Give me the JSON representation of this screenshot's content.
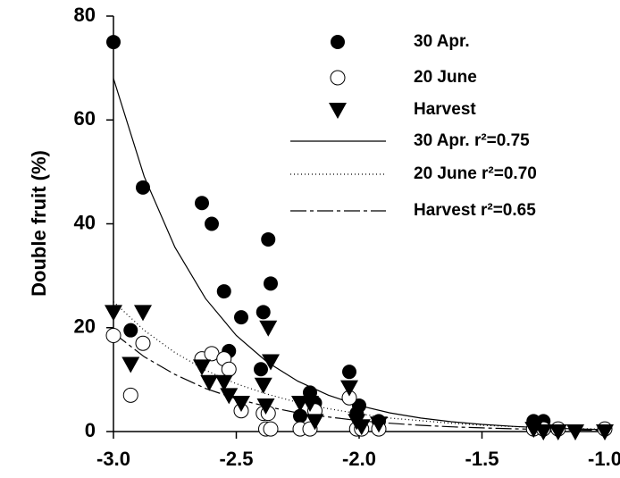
{
  "chart_data": {
    "type": "scatter",
    "ylabel": "Double fruit (%)",
    "xlim": [
      -3.0,
      -1.0
    ],
    "ylim": [
      0,
      80
    ],
    "xticks": [
      {
        "value": -3.0,
        "label": "-3.0"
      },
      {
        "value": -2.5,
        "label": "-2.5"
      },
      {
        "value": -2.0,
        "label": "-2.0"
      },
      {
        "value": -1.5,
        "label": "-1.5"
      },
      {
        "value": -1.0,
        "label": "-1.0"
      }
    ],
    "yticks": [
      0,
      20,
      40,
      60,
      80
    ],
    "series": [
      {
        "name": "30 Apr.",
        "style": "filled-circle",
        "color": "#000000",
        "x": [
          -3.0,
          -2.93,
          -2.88,
          -2.64,
          -2.6,
          -2.55,
          -2.53,
          -2.48,
          -2.39,
          -2.4,
          -2.37,
          -2.36,
          -2.24,
          -2.2,
          -2.18,
          -2.04,
          -2.01,
          -2.0,
          -1.92,
          -1.29,
          -1.25
        ],
        "values": [
          75,
          19.5,
          47,
          44,
          40,
          27,
          15.5,
          22,
          23,
          12,
          37,
          28.5,
          3,
          7.5,
          5.5,
          11.5,
          3.5,
          5,
          2,
          2,
          2
        ]
      },
      {
        "name": "20 June",
        "style": "open-circle",
        "color": "#000000",
        "x": [
          -3.0,
          -2.93,
          -2.88,
          -2.64,
          -2.6,
          -2.55,
          -2.53,
          -2.48,
          -2.39,
          -2.38,
          -2.37,
          -2.36,
          -2.24,
          -2.2,
          -2.18,
          -2.04,
          -2.01,
          -1.99,
          -1.92,
          -1.29,
          -1.25,
          -1.19,
          -1.0
        ],
        "values": [
          18.5,
          7,
          17,
          14,
          15,
          14,
          12,
          4,
          3.5,
          0.5,
          3.5,
          0.5,
          0.5,
          0.5,
          4,
          6.5,
          0.5,
          0.5,
          0.5,
          0.5,
          0.5,
          0.5,
          0.5
        ]
      },
      {
        "name": "Harvest",
        "style": "triangle-down",
        "color": "#000000",
        "x": [
          -3.0,
          -2.93,
          -2.88,
          -2.64,
          -2.61,
          -2.55,
          -2.53,
          -2.48,
          -2.39,
          -2.38,
          -2.37,
          -2.36,
          -2.24,
          -2.2,
          -2.18,
          -2.04,
          -2.01,
          -1.99,
          -1.92,
          -1.29,
          -1.25,
          -1.19,
          -1.12,
          -1.0
        ],
        "values": [
          23,
          13,
          23,
          12.5,
          9.5,
          9.5,
          7,
          5.5,
          9,
          5,
          20,
          13.5,
          5.5,
          5.5,
          2,
          8.5,
          2,
          1,
          1.5,
          0.5,
          0,
          0,
          0,
          0
        ]
      },
      {
        "name": "30 Apr. r²=0.75",
        "style": "solid",
        "color": "#000000",
        "x": [
          -3.0,
          -2.875,
          -2.75,
          -2.625,
          -2.5,
          -2.375,
          -2.25,
          -2.125,
          -2.0,
          -1.875,
          -1.75,
          -1.625,
          -1.5,
          -1.375,
          -1.25,
          -1.125,
          -1.0
        ],
        "values": [
          68,
          49.1,
          35.5,
          25.6,
          18.5,
          13.4,
          9.7,
          7.0,
          5.0,
          3.6,
          2.6,
          1.9,
          1.37,
          0.99,
          0.71,
          0.52,
          0.37
        ]
      },
      {
        "name": "20 June r²=0.70",
        "style": "dotted",
        "color": "#000000",
        "x": [
          -3.0,
          -2.875,
          -2.75,
          -2.625,
          -2.5,
          -2.375,
          -2.25,
          -2.125,
          -2.0,
          -1.875,
          -1.75,
          -1.625,
          -1.5,
          -1.375,
          -1.25,
          -1.125,
          -1.0
        ],
        "values": [
          25,
          19.5,
          15.2,
          11.8,
          9.2,
          7.2,
          5.6,
          4.4,
          3.4,
          2.6,
          2.1,
          1.6,
          1.2,
          0.97,
          0.75,
          0.59,
          0.46
        ]
      },
      {
        "name": "Harvest r²=0.65",
        "style": "dashdot",
        "color": "#000000",
        "x": [
          -3.0,
          -2.875,
          -2.75,
          -2.625,
          -2.5,
          -2.375,
          -2.25,
          -2.125,
          -2.0,
          -1.875,
          -1.75,
          -1.625,
          -1.5,
          -1.375,
          -1.25,
          -1.125,
          -1.0
        ],
        "values": [
          19,
          14.4,
          11.0,
          8.3,
          6.3,
          4.8,
          3.6,
          2.8,
          2.1,
          1.6,
          1.2,
          0.92,
          0.7,
          0.53,
          0.4,
          0.31,
          0.23
        ]
      }
    ]
  }
}
